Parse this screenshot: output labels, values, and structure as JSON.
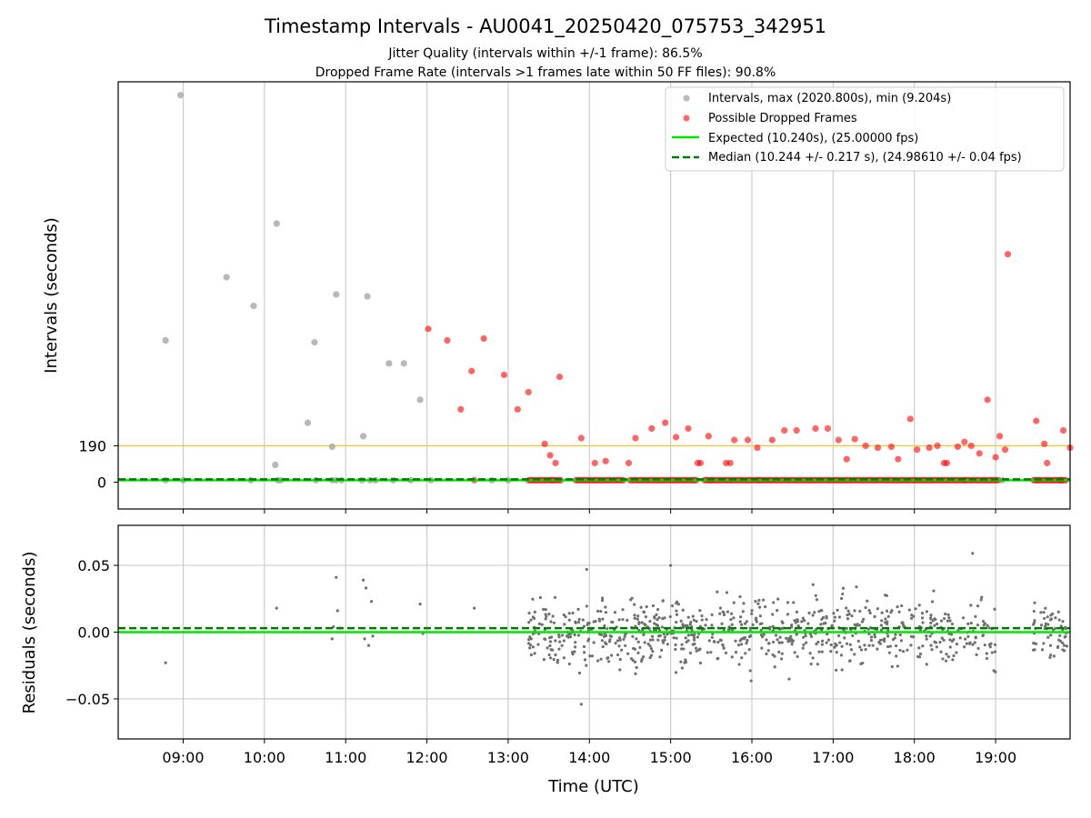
{
  "figure": {
    "title": "Timestamp Intervals - AU0041_20250420_075753_342951",
    "subtitle_1": "Jitter Quality (intervals within +/-1 frame): 86.5%",
    "subtitle_2": "Dropped Frame Rate (intervals >1 frames late within 50 FF files): 90.8%"
  },
  "colors": {
    "intervals": "#a0a0a0",
    "dropped": "#ff0000",
    "expected": "#00e600",
    "median": "#007a00",
    "threshold": "#f5c542",
    "residuals": "#707070",
    "grid": "#cccccc"
  },
  "chart_data": [
    {
      "type": "scatter",
      "panel": "intervals",
      "xlabel": "",
      "ylabel": "Intervals (seconds)",
      "xlim": [
        "08:12",
        "19:55"
      ],
      "ylim": [
        -140,
        2090
      ],
      "yticks": [
        0,
        190
      ],
      "ytick_labels": [
        "0",
        "190"
      ],
      "threshold_line": 190,
      "grid": "vertical",
      "legend_position": "top-right",
      "legend": [
        "Intervals, max (2020.800s), min (9.204s)",
        "Possible Dropped Frames",
        "Expected (10.240s), (25.00000 fps)",
        "Median (10.244 +/- 0.217 s), (24.98610 +/- 0.04 fps)"
      ],
      "expected_value": 10.24,
      "median_value": 10.244,
      "series": [
        {
          "name": "Intervals, max (2020.800s), min (9.204s)",
          "points": [
            [
              "08:47",
              740
            ],
            [
              "08:58",
              2020
            ],
            [
              "09:32",
              1070
            ],
            [
              "09:52",
              920
            ],
            [
              "10:08",
              90
            ],
            [
              "10:09",
              1350
            ],
            [
              "10:32",
              310
            ],
            [
              "10:37",
              730
            ],
            [
              "10:50",
              185
            ],
            [
              "10:53",
              980
            ],
            [
              "11:13",
              240
            ],
            [
              "11:16",
              970
            ],
            [
              "11:32",
              620
            ],
            [
              "11:43",
              620
            ],
            [
              "11:55",
              430
            ],
            [
              "08:47",
              10
            ],
            [
              "09:00",
              10
            ],
            [
              "09:50",
              10
            ],
            [
              "10:10",
              10
            ],
            [
              "10:12",
              10
            ],
            [
              "10:38",
              10
            ],
            [
              "10:50",
              10
            ],
            [
              "10:53",
              10
            ],
            [
              "10:57",
              10
            ],
            [
              "11:12",
              10
            ],
            [
              "11:18",
              10
            ],
            [
              "11:22",
              10
            ],
            [
              "11:35",
              10
            ],
            [
              "11:48",
              10
            ],
            [
              "12:03",
              10
            ],
            [
              "12:48",
              10
            ],
            [
              "13:00",
              10
            ],
            [
              "13:32",
              10
            ],
            [
              "15:30",
              10
            ],
            [
              "16:05",
              10
            ],
            [
              "18:37",
              10
            ],
            [
              "19:05",
              10
            ],
            [
              "19:31",
              10
            ]
          ]
        },
        {
          "name": "Possible Dropped Frames",
          "points": [
            [
              "12:01",
              800
            ],
            [
              "12:15",
              740
            ],
            [
              "12:25",
              380
            ],
            [
              "12:33",
              580
            ],
            [
              "12:35",
              10
            ],
            [
              "12:42",
              750
            ],
            [
              "12:57",
              560
            ],
            [
              "13:07",
              380
            ],
            [
              "13:15",
              470
            ],
            [
              "13:27",
              200
            ],
            [
              "13:31",
              140
            ],
            [
              "13:35",
              100
            ],
            [
              "13:38",
              550
            ],
            [
              "13:54",
              230
            ],
            [
              "14:04",
              100
            ],
            [
              "14:12",
              110
            ],
            [
              "14:29",
              100
            ],
            [
              "14:34",
              230
            ],
            [
              "14:46",
              280
            ],
            [
              "14:56",
              310
            ],
            [
              "15:04",
              235
            ],
            [
              "15:13",
              280
            ],
            [
              "15:20",
              100
            ],
            [
              "15:22",
              100
            ],
            [
              "15:28",
              240
            ],
            [
              "15:41",
              100
            ],
            [
              "15:44",
              100
            ],
            [
              "15:47",
              220
            ],
            [
              "15:57",
              220
            ],
            [
              "16:04",
              180
            ],
            [
              "16:15",
              220
            ],
            [
              "16:24",
              270
            ],
            [
              "16:33",
              270
            ],
            [
              "16:47",
              280
            ],
            [
              "16:56",
              280
            ],
            [
              "17:04",
              220
            ],
            [
              "17:10",
              120
            ],
            [
              "17:16",
              225
            ],
            [
              "17:24",
              190
            ],
            [
              "17:33",
              180
            ],
            [
              "17:43",
              185
            ],
            [
              "17:48",
              120
            ],
            [
              "17:57",
              330
            ],
            [
              "18:02",
              170
            ],
            [
              "18:11",
              180
            ],
            [
              "18:17",
              190
            ],
            [
              "18:22",
              100
            ],
            [
              "18:24",
              100
            ],
            [
              "18:32",
              185
            ],
            [
              "18:37",
              210
            ],
            [
              "18:42",
              190
            ],
            [
              "18:48",
              150
            ],
            [
              "18:54",
              430
            ],
            [
              "19:00",
              130
            ],
            [
              "19:03",
              240
            ],
            [
              "19:07",
              170
            ],
            [
              "19:09",
              1190
            ],
            [
              "19:30",
              320
            ],
            [
              "19:36",
              200
            ],
            [
              "19:38",
              100
            ],
            [
              "19:50",
              270
            ],
            [
              "19:55",
              180
            ],
            [
              "19:48",
              10
            ]
          ],
          "baseline_band": {
            "value": 10,
            "ranges": [
              [
                "13:15",
                "13:40"
              ],
              [
                "13:50",
                "14:25"
              ],
              [
                "14:30",
                "15:20"
              ],
              [
                "15:25",
                "19:03"
              ],
              [
                "19:28",
                "19:53"
              ]
            ]
          }
        },
        {
          "name": "Expected (10.240s), (25.00000 fps)",
          "value": 10.24
        },
        {
          "name": "Median (10.244 +/- 0.217 s), (24.98610 +/- 0.04 fps)",
          "value": 10.244
        }
      ]
    },
    {
      "type": "scatter",
      "panel": "residuals",
      "xlabel": "Time (UTC)",
      "ylabel": "Residuals (seconds)",
      "xlim": [
        "08:12",
        "19:55"
      ],
      "ylim": [
        -0.08,
        0.08
      ],
      "yticks": [
        0.05,
        0.0,
        -0.05
      ],
      "ytick_labels": [
        "0.05",
        "0.00",
        "−0.05"
      ],
      "xticks": [
        "09:00",
        "10:00",
        "11:00",
        "12:00",
        "13:00",
        "14:00",
        "15:00",
        "16:00",
        "17:00",
        "18:00",
        "19:00"
      ],
      "xtick_labels": [
        "09:00",
        "10:00",
        "11:00",
        "12:00",
        "13:00",
        "14:00",
        "15:00",
        "16:00",
        "17:00",
        "18:00",
        "19:00"
      ],
      "grid": "both",
      "expected_value": 0.0,
      "median_value": 0.003,
      "series": [
        {
          "name": "",
          "points": [
            [
              "08:47",
              -0.023
            ],
            [
              "10:09",
              0.018
            ],
            [
              "10:50",
              -0.005
            ],
            [
              "10:51",
              0.004
            ],
            [
              "10:53",
              0.041
            ],
            [
              "10:54",
              0.016
            ],
            [
              "10:56",
              0.003
            ],
            [
              "11:13",
              0.039
            ],
            [
              "11:14",
              -0.005
            ],
            [
              "11:15",
              0.033
            ],
            [
              "11:17",
              -0.01
            ],
            [
              "11:19",
              0.023
            ],
            [
              "11:20",
              -0.003
            ],
            [
              "11:55",
              0.021
            ],
            [
              "11:57",
              -0.001
            ],
            [
              "12:35",
              0.018
            ]
          ],
          "dense_ranges": [
            {
              "from": "13:15",
              "to": "19:00",
              "count": 780,
              "spread": 0.024,
              "extremes": [
                [
                  "13:54",
                  -0.054
                ],
                [
                  "18:43",
                  0.059
                ],
                [
                  "15:00",
                  0.05
                ],
                [
                  "13:58",
                  0.047
                ]
              ]
            },
            {
              "from": "19:27",
              "to": "19:53",
              "count": 60,
              "spread": 0.02
            }
          ]
        }
      ]
    }
  ]
}
